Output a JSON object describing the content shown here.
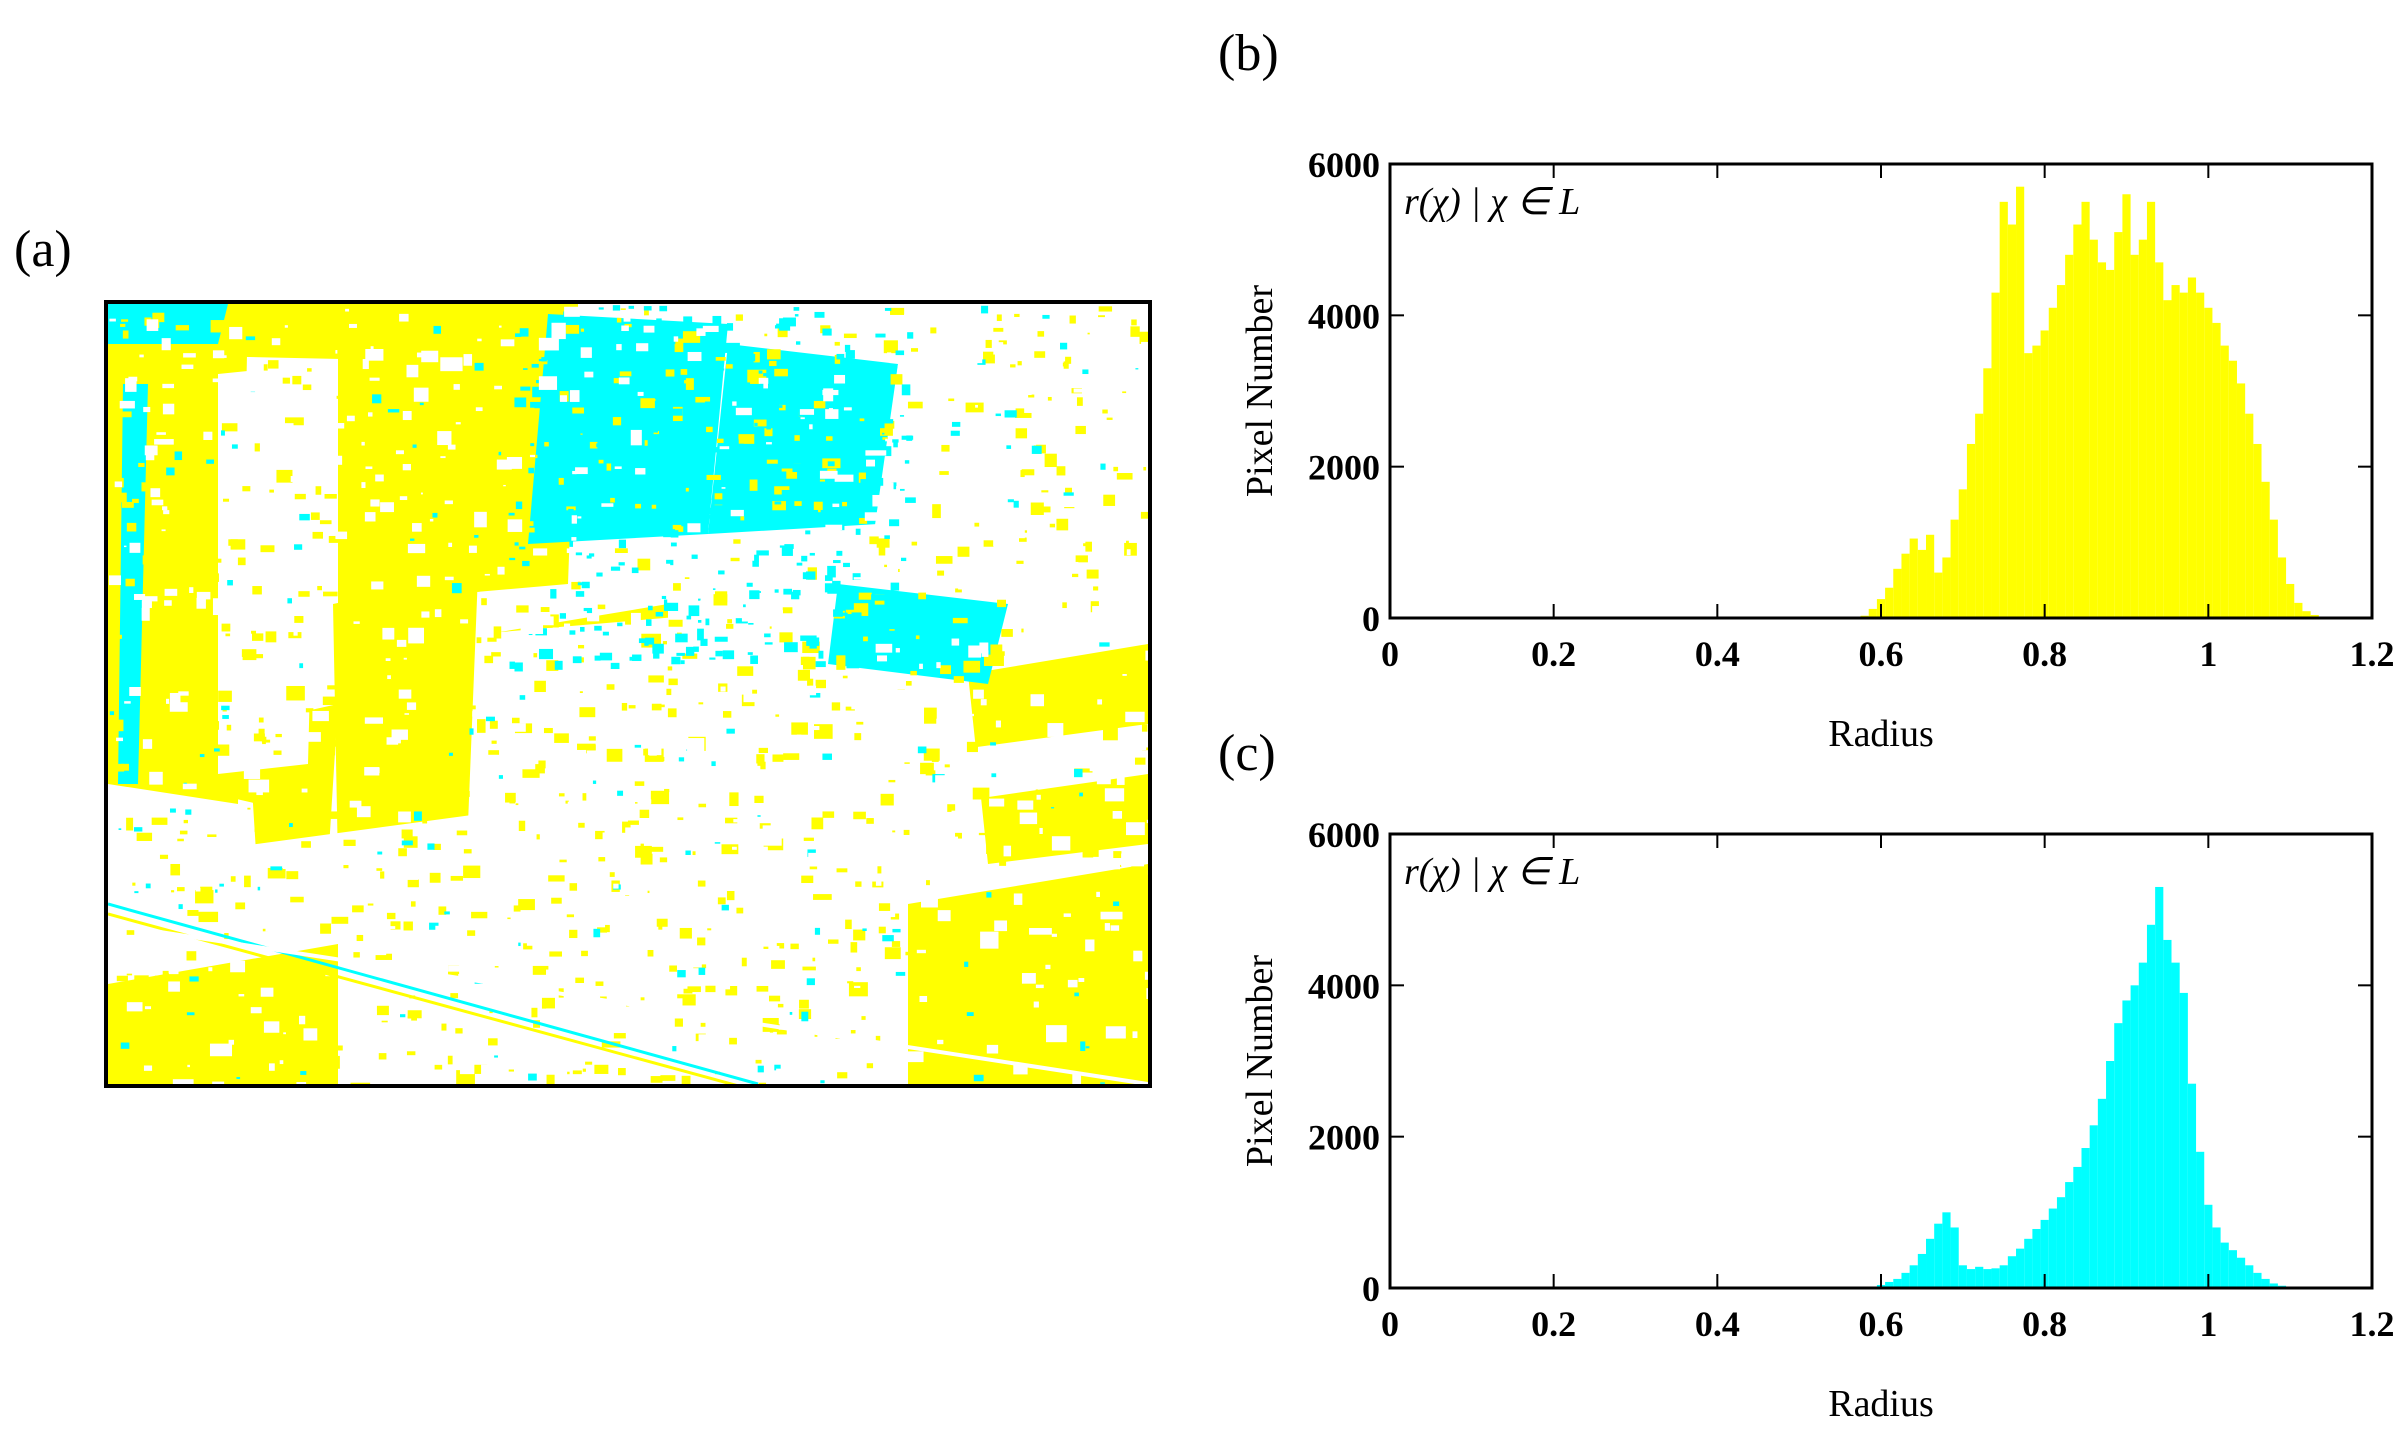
{
  "panels": {
    "a": "(a)",
    "b": "(b)",
    "c": "(c)"
  },
  "map": {
    "colors": {
      "class1": "#ffff00",
      "class2": "#00ffff",
      "background": "#ffffff"
    }
  },
  "chart_data": [
    {
      "id": "b",
      "type": "bar",
      "color": "#ffff00",
      "legend": "r(χ) | χ ∈ L",
      "xlabel": "Radius",
      "ylabel": "Pixel Number",
      "xlim": [
        0,
        1.2
      ],
      "ylim": [
        0,
        6000
      ],
      "xticks": [
        "0",
        "0.2",
        "0.4",
        "0.6",
        "0.8",
        "1",
        "1.2"
      ],
      "yticks": [
        "0",
        "2000",
        "4000",
        "6000"
      ],
      "grid": false,
      "x": [
        0.58,
        0.59,
        0.6,
        0.61,
        0.62,
        0.63,
        0.64,
        0.65,
        0.66,
        0.67,
        0.68,
        0.69,
        0.7,
        0.71,
        0.72,
        0.73,
        0.74,
        0.75,
        0.76,
        0.77,
        0.78,
        0.79,
        0.8,
        0.81,
        0.82,
        0.83,
        0.84,
        0.85,
        0.86,
        0.87,
        0.88,
        0.89,
        0.9,
        0.91,
        0.92,
        0.93,
        0.94,
        0.95,
        0.96,
        0.97,
        0.98,
        0.99,
        1.0,
        1.01,
        1.02,
        1.03,
        1.04,
        1.05,
        1.06,
        1.07,
        1.08,
        1.09,
        1.1,
        1.11,
        1.12,
        1.13,
        1.14
      ],
      "values": [
        30,
        120,
        250,
        400,
        650,
        850,
        1050,
        900,
        1100,
        600,
        800,
        1300,
        1700,
        2300,
        2700,
        3300,
        4300,
        5500,
        5200,
        5700,
        3500,
        3600,
        3800,
        4100,
        4400,
        4800,
        5200,
        5500,
        5000,
        4700,
        4600,
        5100,
        5600,
        4800,
        5000,
        5500,
        4700,
        4200,
        4400,
        4300,
        4500,
        4300,
        4100,
        3900,
        3600,
        3400,
        3100,
        2700,
        2300,
        1800,
        1300,
        800,
        450,
        200,
        90,
        40,
        10
      ]
    },
    {
      "id": "c",
      "type": "bar",
      "color": "#00ffff",
      "legend": "r(χ) | χ ∈ L",
      "xlabel": "Radius",
      "ylabel": "Pixel Number",
      "xlim": [
        0,
        1.2
      ],
      "ylim": [
        0,
        6000
      ],
      "xticks": [
        "0",
        "0.2",
        "0.4",
        "0.6",
        "0.8",
        "1",
        "1.2"
      ],
      "yticks": [
        "0",
        "2000",
        "4000",
        "6000"
      ],
      "grid": false,
      "x": [
        0.6,
        0.61,
        0.62,
        0.63,
        0.64,
        0.65,
        0.66,
        0.67,
        0.68,
        0.69,
        0.7,
        0.71,
        0.72,
        0.73,
        0.74,
        0.75,
        0.76,
        0.77,
        0.78,
        0.79,
        0.8,
        0.81,
        0.82,
        0.83,
        0.84,
        0.85,
        0.86,
        0.87,
        0.88,
        0.89,
        0.9,
        0.91,
        0.92,
        0.93,
        0.94,
        0.95,
        0.96,
        0.97,
        0.98,
        0.99,
        1.0,
        1.01,
        1.02,
        1.03,
        1.04,
        1.05,
        1.06,
        1.07,
        1.08,
        1.09,
        1.1
      ],
      "values": [
        40,
        80,
        120,
        200,
        300,
        450,
        650,
        850,
        1000,
        800,
        300,
        250,
        280,
        250,
        260,
        300,
        420,
        520,
        650,
        780,
        900,
        1050,
        1200,
        1400,
        1600,
        1850,
        2150,
        2500,
        3000,
        3500,
        3800,
        4000,
        4300,
        4800,
        5300,
        4600,
        4300,
        3900,
        2700,
        1800,
        1100,
        800,
        600,
        500,
        400,
        300,
        200,
        120,
        60,
        30,
        10
      ]
    }
  ]
}
